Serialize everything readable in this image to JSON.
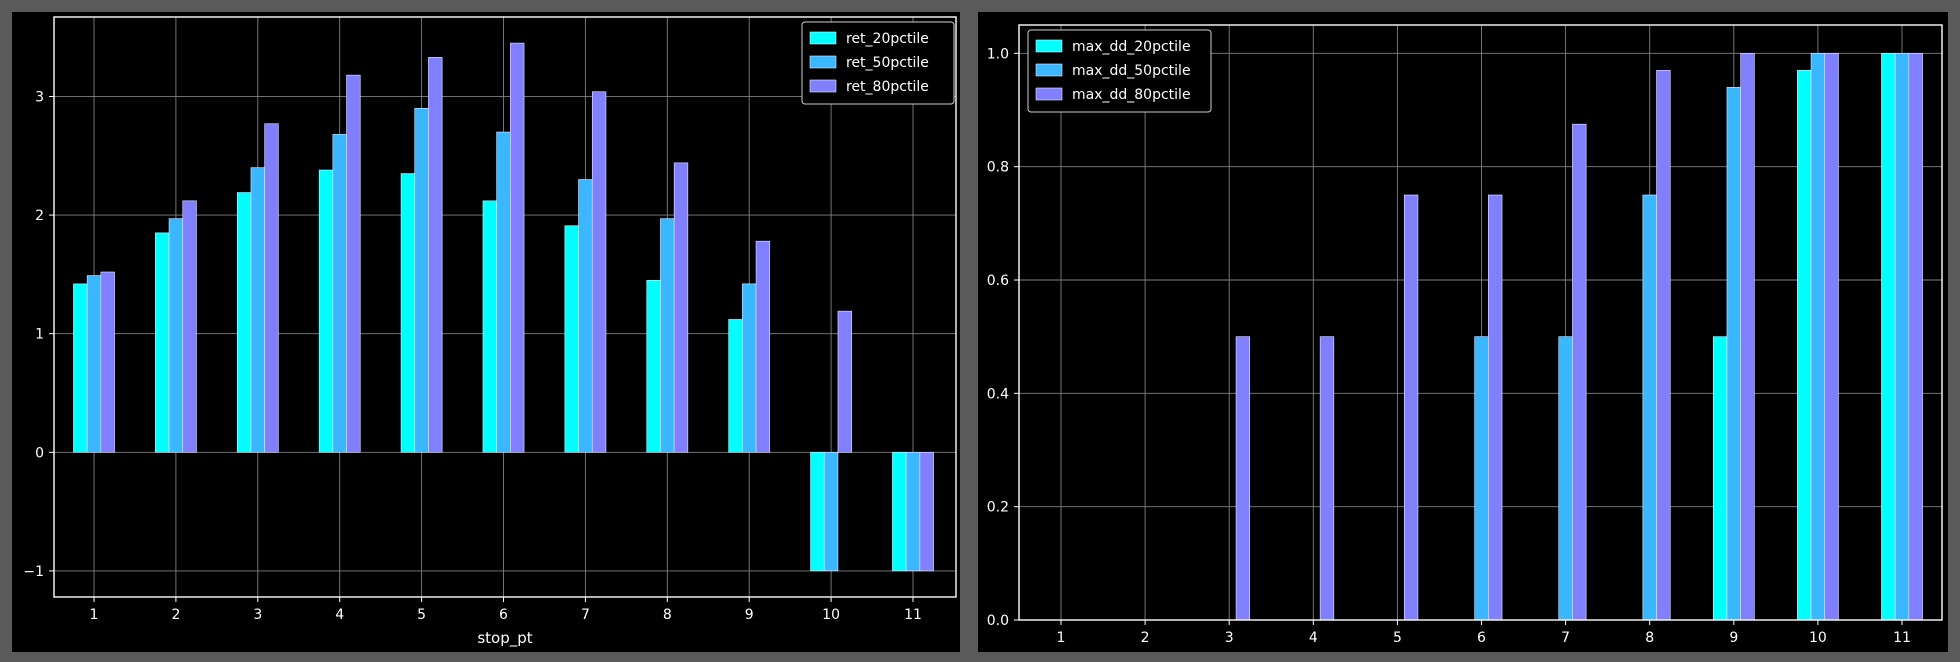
{
  "chart_data": [
    {
      "type": "bar",
      "xlabel": "stop_pt",
      "ylabel": "",
      "ylim": [
        -1.22,
        3.67
      ],
      "yticks": [
        -1,
        0,
        1,
        2,
        3
      ],
      "yticks_labels": [
        "−1",
        "0",
        "1",
        "2",
        "3"
      ],
      "grid": true,
      "legend_position": "top-right",
      "categories": [
        "1",
        "2",
        "3",
        "4",
        "5",
        "6",
        "7",
        "8",
        "9",
        "10",
        "11"
      ],
      "series": [
        {
          "name": "ret_20pctile",
          "color": "#00ffff",
          "values": [
            1.42,
            1.85,
            2.19,
            2.38,
            2.35,
            2.12,
            1.91,
            1.45,
            1.12,
            -1.0,
            -1.0
          ]
        },
        {
          "name": "ret_50pctile",
          "color": "#3ab7ff",
          "values": [
            1.49,
            1.97,
            2.4,
            2.68,
            2.9,
            2.7,
            2.3,
            1.97,
            1.42,
            -1.0,
            -1.0
          ]
        },
        {
          "name": "ret_80pctile",
          "color": "#8080ff",
          "values": [
            1.52,
            2.12,
            2.77,
            3.18,
            3.33,
            3.45,
            3.04,
            2.44,
            1.78,
            1.19,
            -1.0
          ]
        }
      ]
    },
    {
      "type": "bar",
      "xlabel": "",
      "ylabel": "",
      "ylim": [
        0,
        1.05
      ],
      "yticks": [
        0,
        0.2,
        0.4,
        0.6,
        0.8,
        1.0
      ],
      "yticks_labels": [
        "0.0",
        "0.2",
        "0.4",
        "0.6",
        "0.8",
        "1.0"
      ],
      "grid": true,
      "legend_position": "top-left",
      "categories": [
        "1",
        "2",
        "3",
        "4",
        "5",
        "6",
        "7",
        "8",
        "9",
        "10",
        "11"
      ],
      "series": [
        {
          "name": "max_dd_20pctile",
          "color": "#00ffff",
          "values": [
            0,
            0,
            0,
            0,
            0,
            0,
            0,
            0,
            0.5,
            0.97,
            1.0
          ]
        },
        {
          "name": "max_dd_50pctile",
          "color": "#3ab7ff",
          "values": [
            0,
            0,
            0,
            0,
            0,
            0.5,
            0.5,
            0.75,
            0.94,
            1.0,
            1.0
          ]
        },
        {
          "name": "max_dd_80pctile",
          "color": "#8080ff",
          "values": [
            0,
            0,
            0.5,
            0.5,
            0.75,
            0.75,
            0.875,
            0.97,
            1.0,
            1.0,
            1.0
          ]
        }
      ]
    }
  ]
}
